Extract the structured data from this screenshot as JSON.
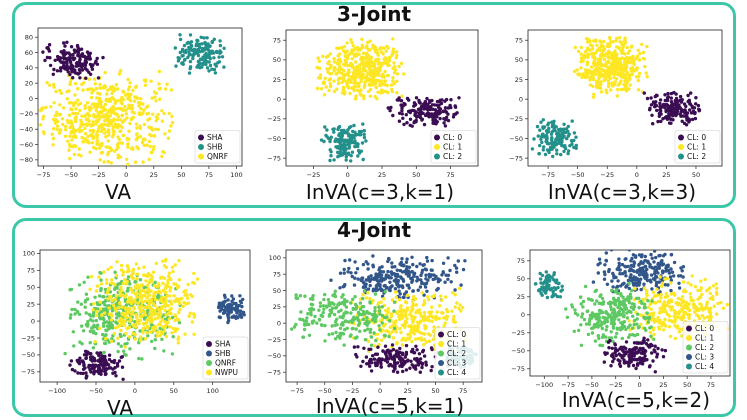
{
  "colors": {
    "purple": "#3b0d52",
    "teal": "#23908b",
    "blue": "#31568a",
    "green": "#5ec962",
    "yellow": "#fde725",
    "border": "#3cc7a8"
  },
  "panels": [
    {
      "title": "3-Joint",
      "charts": [
        {
          "type": "scatter",
          "caption": "VA",
          "xticks": [
            "−75",
            "−50",
            "−25",
            "0",
            "25",
            "50",
            "75",
            "100"
          ],
          "yticks": [
            "80",
            "60",
            "40",
            "20",
            "0",
            "−20",
            "−40",
            "−60",
            "−80"
          ],
          "xlim": [
            -80,
            105
          ],
          "ylim": [
            -88,
            92
          ],
          "legend": [
            "SHA",
            "SHB",
            "QNRF"
          ],
          "legend_colors": [
            "purple",
            "teal",
            "yellow"
          ],
          "clusters": [
            {
              "color": "yellow",
              "cx": -18,
              "cy": -25,
              "sx": 28,
              "sy": 28,
              "n": 520
            },
            {
              "color": "purple",
              "cx": -48,
              "cy": 50,
              "sx": 13,
              "sy": 11,
              "n": 150
            },
            {
              "color": "teal",
              "cx": 68,
              "cy": 57,
              "sx": 11,
              "sy": 12,
              "n": 150
            }
          ]
        },
        {
          "type": "scatter",
          "caption": "InVA(c=3,k=1)",
          "xticks": [
            "−25",
            "0",
            "25",
            "50",
            "75"
          ],
          "yticks": [
            "75",
            "50",
            "25",
            "0",
            "−25",
            "−50",
            "−75"
          ],
          "xlim": [
            -45,
            95
          ],
          "ylim": [
            -85,
            88
          ],
          "legend": [
            "CL: 0",
            "CL: 1",
            "CL: 2"
          ],
          "legend_colors": [
            "purple",
            "yellow",
            "teal"
          ],
          "clusters": [
            {
              "color": "yellow",
              "cx": 10,
              "cy": 38,
              "sx": 15,
              "sy": 18,
              "n": 420
            },
            {
              "color": "purple",
              "cx": 55,
              "cy": -15,
              "sx": 12,
              "sy": 9,
              "n": 170
            },
            {
              "color": "teal",
              "cx": -2,
              "cy": -55,
              "sx": 8,
              "sy": 11,
              "n": 140
            }
          ]
        },
        {
          "type": "scatter",
          "caption": "InVA(c=3,k=3)",
          "xticks": [
            "−75",
            "−50",
            "−25",
            "0",
            "25",
            "50"
          ],
          "yticks": [
            "75",
            "50",
            "25",
            "0",
            "−25",
            "−50",
            "−75"
          ],
          "xlim": [
            -92,
            72
          ],
          "ylim": [
            -85,
            88
          ],
          "legend": [
            "CL: 0",
            "CL: 1",
            "CL: 2"
          ],
          "legend_colors": [
            "purple",
            "yellow",
            "teal"
          ],
          "clusters": [
            {
              "color": "yellow",
              "cx": -22,
              "cy": 42,
              "sx": 14,
              "sy": 18,
              "n": 420
            },
            {
              "color": "purple",
              "cx": 30,
              "cy": -12,
              "sx": 11,
              "sy": 10,
              "n": 170
            },
            {
              "color": "teal",
              "cx": -70,
              "cy": -50,
              "sx": 9,
              "sy": 11,
              "n": 140
            }
          ]
        }
      ]
    },
    {
      "title": "4-Joint",
      "charts": [
        {
          "type": "scatter",
          "caption": "VA",
          "xticks": [
            "−100",
            "−50",
            "0",
            "50",
            "100"
          ],
          "yticks": [
            "100",
            "75",
            "50",
            "25",
            "0",
            "−25",
            "−50",
            "−75"
          ],
          "xlim": [
            -122,
            148
          ],
          "ylim": [
            -90,
            105
          ],
          "legend": [
            "SHA",
            "SHB",
            "QNRF",
            "NWPU"
          ],
          "legend_colors": [
            "purple",
            "blue",
            "green",
            "yellow"
          ],
          "clusters": [
            {
              "color": "green",
              "cx": -15,
              "cy": 10,
              "sx": 34,
              "sy": 30,
              "n": 380
            },
            {
              "color": "yellow",
              "cx": 12,
              "cy": 25,
              "sx": 32,
              "sy": 30,
              "n": 420
            },
            {
              "color": "purple",
              "cx": -50,
              "cy": -65,
              "sx": 16,
              "sy": 10,
              "n": 130
            },
            {
              "color": "blue",
              "cx": 122,
              "cy": 18,
              "sx": 10,
              "sy": 9,
              "n": 90
            }
          ]
        },
        {
          "type": "scatter",
          "caption": "InVA(c=5,k=1)",
          "xticks": [
            "−75",
            "−50",
            "−25",
            "0",
            "25",
            "50",
            "75"
          ],
          "yticks": [
            "100",
            "75",
            "50",
            "25",
            "0",
            "−25",
            "−50",
            "−75"
          ],
          "xlim": [
            -85,
            92
          ],
          "ylim": [
            -90,
            112
          ],
          "legend": [
            "CL: 0",
            "CL: 1",
            "CL: 2",
            "CL: 3",
            "CL: 4"
          ],
          "legend_colors": [
            "purple",
            "yellow",
            "green",
            "blue",
            "teal"
          ],
          "clusters": [
            {
              "color": "blue",
              "cx": 15,
              "cy": 70,
              "sx": 28,
              "sy": 16,
              "n": 260
            },
            {
              "color": "yellow",
              "cx": 25,
              "cy": 5,
              "sx": 25,
              "sy": 22,
              "n": 300
            },
            {
              "color": "green",
              "cx": -35,
              "cy": 10,
              "sx": 22,
              "sy": 22,
              "n": 230
            },
            {
              "color": "purple",
              "cx": 15,
              "cy": -55,
              "sx": 18,
              "sy": 10,
              "n": 150
            },
            {
              "color": "teal",
              "cx": 75,
              "cy": -50,
              "sx": 7,
              "sy": 8,
              "n": 80
            }
          ]
        },
        {
          "type": "scatter",
          "caption": "InVA(c=5,k=2)",
          "xticks": [
            "−100",
            "−75",
            "−50",
            "−25",
            "0",
            "25",
            "50",
            "75"
          ],
          "yticks": [
            "75",
            "50",
            "25",
            "0",
            "−25",
            "−50",
            "−75"
          ],
          "xlim": [
            -115,
            95
          ],
          "ylim": [
            -85,
            90
          ],
          "legend": [
            "CL: 0",
            "CL: 1",
            "CL: 2",
            "CL: 3",
            "CL: 4"
          ],
          "legend_colors": [
            "purple",
            "yellow",
            "green",
            "blue",
            "teal"
          ],
          "clusters": [
            {
              "color": "blue",
              "cx": 0,
              "cy": 60,
              "sx": 22,
              "sy": 14,
              "n": 220
            },
            {
              "color": "yellow",
              "cx": 40,
              "cy": 10,
              "sx": 24,
              "sy": 20,
              "n": 280
            },
            {
              "color": "green",
              "cx": -30,
              "cy": 0,
              "sx": 22,
              "sy": 20,
              "n": 260
            },
            {
              "color": "purple",
              "cx": -5,
              "cy": -55,
              "sx": 15,
              "sy": 11,
              "n": 150
            },
            {
              "color": "teal",
              "cx": -95,
              "cy": 40,
              "sx": 7,
              "sy": 9,
              "n": 70
            }
          ]
        }
      ]
    }
  ]
}
